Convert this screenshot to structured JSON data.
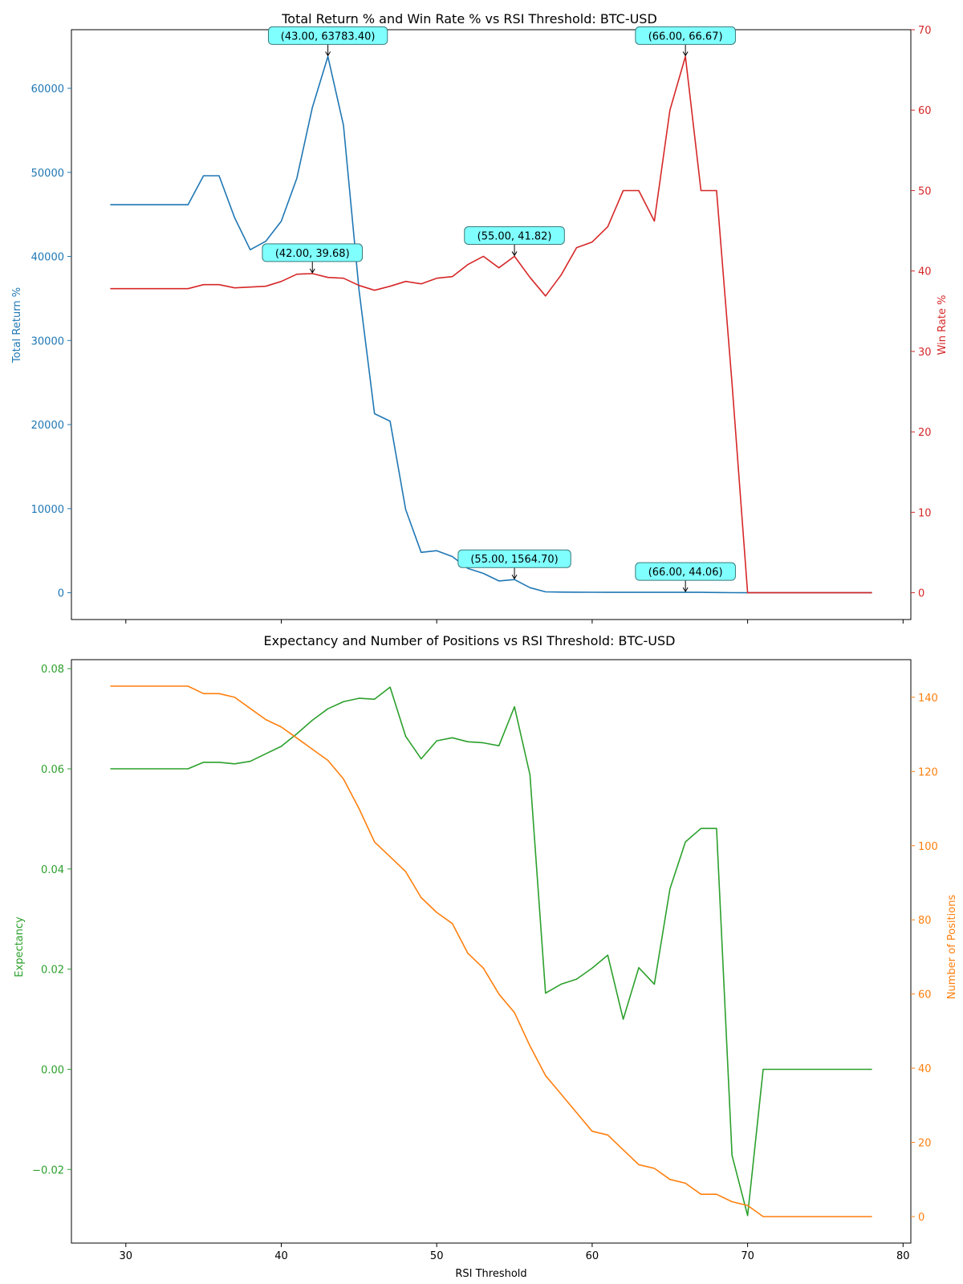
{
  "chart_data": [
    {
      "type": "line",
      "title": "Total Return % and Win Rate % vs RSI Threshold: BTC-USD",
      "xlabel": "",
      "xlim": [
        26.5,
        80.5
      ],
      "xticks": [
        30,
        40,
        50,
        60,
        70,
        80
      ],
      "x": [
        29,
        30,
        31,
        32,
        33,
        34,
        35,
        36,
        37,
        38,
        39,
        40,
        41,
        42,
        43,
        44,
        45,
        46,
        47,
        48,
        49,
        50,
        51,
        52,
        53,
        54,
        55,
        56,
        57,
        58,
        59,
        60,
        61,
        62,
        63,
        64,
        65,
        66,
        67,
        68,
        69,
        70,
        71,
        72,
        73,
        74,
        75,
        76,
        77,
        78
      ],
      "axes": {
        "left": {
          "label": "Total Return %",
          "color": "#1f77b4",
          "ylim": [
            -3189,
            66972
          ],
          "ticks": [
            0,
            10000,
            20000,
            30000,
            40000,
            50000,
            60000
          ]
        },
        "right": {
          "label": "Win Rate %",
          "color": "#d62728",
          "ylim": [
            -3.333,
            70
          ],
          "ticks": [
            0,
            10,
            20,
            30,
            40,
            50,
            60,
            70
          ]
        }
      },
      "series": [
        {
          "name": "Total Return %",
          "axis": "left",
          "color": "#1f77b4",
          "values": [
            46150,
            46150,
            46150,
            46150,
            46150,
            46150,
            49600,
            49600,
            44600,
            40800,
            41800,
            44200,
            49300,
            57700,
            63783.4,
            55600,
            36000,
            21300,
            20400,
            9900,
            4800,
            5000,
            4300,
            2900,
            2300,
            1400,
            1564.7,
            600,
            100,
            80,
            70,
            60,
            50,
            45,
            45,
            44.06,
            44.06,
            44.06,
            44.06,
            30,
            10,
            0,
            0,
            0,
            0,
            0,
            0,
            0,
            0,
            0
          ]
        },
        {
          "name": "Win Rate %",
          "axis": "right",
          "color": "#d62728",
          "values": [
            37.8,
            37.8,
            37.8,
            37.8,
            37.8,
            37.8,
            38.3,
            38.3,
            37.9,
            38.0,
            38.1,
            38.7,
            39.6,
            39.68,
            39.2,
            39.1,
            38.2,
            37.6,
            38.1,
            38.7,
            38.4,
            39.1,
            39.3,
            40.8,
            41.82,
            40.4,
            41.82,
            39.2,
            36.9,
            39.5,
            42.9,
            43.6,
            45.5,
            50.0,
            50.0,
            46.2,
            60.0,
            66.67,
            50.0,
            50.0,
            26.0,
            0,
            0,
            0,
            0,
            0,
            0,
            0,
            0,
            0
          ]
        }
      ],
      "annotations": [
        {
          "x": 43,
          "y": 63783.4,
          "axis": "left",
          "text": "(43.00, 63783.40)"
        },
        {
          "x": 55,
          "y": 1564.7,
          "axis": "left",
          "text": "(55.00, 1564.70)"
        },
        {
          "x": 66,
          "y": 44.06,
          "axis": "left",
          "text": "(66.00, 44.06)"
        },
        {
          "x": 42,
          "y": 39.68,
          "axis": "right",
          "text": "(42.00, 39.68)"
        },
        {
          "x": 55,
          "y": 41.82,
          "axis": "right",
          "text": "(55.00, 41.82)"
        },
        {
          "x": 66,
          "y": 66.67,
          "axis": "right",
          "text": "(66.00, 66.67)"
        }
      ],
      "annotation_box_color": "#80ffff",
      "grid": false
    },
    {
      "type": "line",
      "title": "Expectancy and Number of Positions vs RSI Threshold: BTC-USD",
      "xlabel": "RSI Threshold",
      "xlim": [
        26.5,
        80.5
      ],
      "xticks": [
        30,
        40,
        50,
        60,
        70,
        80
      ],
      "x": [
        29,
        30,
        31,
        32,
        33,
        34,
        35,
        36,
        37,
        38,
        39,
        40,
        41,
        42,
        43,
        44,
        45,
        46,
        47,
        48,
        49,
        50,
        51,
        52,
        53,
        54,
        55,
        56,
        57,
        58,
        59,
        60,
        61,
        62,
        63,
        64,
        65,
        66,
        67,
        68,
        69,
        70,
        71,
        72,
        73,
        74,
        75,
        76,
        77,
        78
      ],
      "axes": {
        "left": {
          "label": "Expectancy",
          "color": "#2ca02c",
          "ylim": [
            -0.0347,
            0.0818
          ],
          "ticks": [
            -0.02,
            0.0,
            0.02,
            0.04,
            0.06,
            0.08
          ]
        },
        "right": {
          "label": "Number of Positions",
          "color": "#ff7f0e",
          "ylim": [
            -7.15,
            150.15
          ],
          "ticks": [
            0,
            20,
            40,
            60,
            80,
            100,
            120,
            140
          ]
        }
      },
      "series": [
        {
          "name": "Expectancy",
          "axis": "left",
          "color": "#2ca02c",
          "values": [
            0.06,
            0.06,
            0.06,
            0.06,
            0.06,
            0.06,
            0.0613,
            0.0613,
            0.061,
            0.0615,
            0.063,
            0.0645,
            0.067,
            0.0697,
            0.072,
            0.0734,
            0.0741,
            0.0739,
            0.0763,
            0.0665,
            0.062,
            0.0656,
            0.0662,
            0.0654,
            0.0652,
            0.0646,
            0.0724,
            0.0588,
            0.0152,
            0.017,
            0.018,
            0.0202,
            0.0228,
            0.01,
            0.0203,
            0.017,
            0.036,
            0.0454,
            0.0481,
            0.0481,
            -0.0172,
            -0.0292,
            0,
            0,
            0,
            0,
            0,
            0,
            0,
            0
          ]
        },
        {
          "name": "Number of Positions",
          "axis": "right",
          "color": "#ff7f0e",
          "values": [
            143,
            143,
            143,
            143,
            143,
            143,
            141,
            141,
            140,
            137,
            134,
            132,
            129,
            126,
            123,
            118,
            110,
            101,
            97,
            93,
            86,
            82,
            79,
            71,
            67,
            60,
            55,
            46,
            38,
            33,
            28,
            23,
            22,
            18,
            14,
            13,
            10,
            9,
            6,
            6,
            4,
            3,
            0,
            0,
            0,
            0,
            0,
            0,
            0,
            0
          ]
        }
      ],
      "grid": false
    }
  ]
}
